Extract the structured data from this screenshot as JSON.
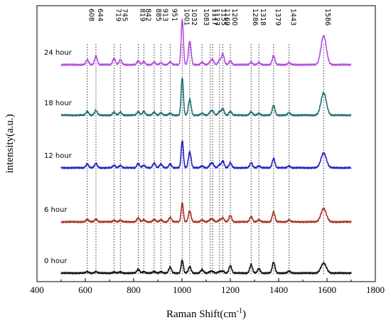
{
  "chart_data": {
    "type": "line",
    "title": "",
    "xlabel": "Raman Shift(cm",
    "xlabel_sup": "-1",
    "xlabel_close": ")",
    "ylabel": "intensity(a.u.)",
    "xlim": [
      400,
      1800
    ],
    "xticks": [
      400,
      600,
      800,
      1000,
      1200,
      1400,
      1600,
      1800
    ],
    "yticks_labeled": false,
    "grid": false,
    "legend": "none",
    "peak_lines": [
      608,
      644,
      719,
      745,
      819,
      842,
      885,
      913,
      951,
      1001,
      1032,
      1083,
      1117,
      1127,
      1155,
      1169,
      1200,
      1286,
      1318,
      1379,
      1443,
      1586
    ],
    "peak_labels": [
      "608",
      "644",
      "719",
      "745",
      "819",
      "842",
      "885",
      "913",
      "951",
      "1001",
      "1032",
      "1083",
      "1117",
      "1127",
      "1155",
      "1169",
      "1200",
      "1286",
      "1318",
      "1379",
      "1443",
      "1586"
    ],
    "series": [
      {
        "name": "24 hour",
        "color": "#b44ce0",
        "peaks": [
          [
            608,
            0.1
          ],
          [
            644,
            0.17
          ],
          [
            719,
            0.13
          ],
          [
            745,
            0.1
          ],
          [
            819,
            0.08
          ],
          [
            842,
            0.06
          ],
          [
            885,
            0.05
          ],
          [
            913,
            0.04
          ],
          [
            951,
            0.06
          ],
          [
            1001,
            0.9
          ],
          [
            1032,
            0.48
          ],
          [
            1083,
            0.05
          ],
          [
            1117,
            0.06
          ],
          [
            1127,
            0.09
          ],
          [
            1155,
            0.09
          ],
          [
            1169,
            0.22
          ],
          [
            1200,
            0.08
          ],
          [
            1286,
            0.05
          ],
          [
            1318,
            0.04
          ],
          [
            1379,
            0.18
          ],
          [
            1443,
            0.04
          ],
          [
            1586,
            0.58
          ]
        ]
      },
      {
        "name": "18 hour",
        "color": "#1f6f72",
        "peaks": [
          [
            608,
            0.08
          ],
          [
            644,
            0.1
          ],
          [
            719,
            0.06
          ],
          [
            745,
            0.06
          ],
          [
            819,
            0.07
          ],
          [
            842,
            0.08
          ],
          [
            885,
            0.06
          ],
          [
            913,
            0.05
          ],
          [
            951,
            0.04
          ],
          [
            1001,
            0.76
          ],
          [
            1032,
            0.32
          ],
          [
            1083,
            0.04
          ],
          [
            1117,
            0.06
          ],
          [
            1127,
            0.08
          ],
          [
            1155,
            0.07
          ],
          [
            1169,
            0.13
          ],
          [
            1200,
            0.08
          ],
          [
            1286,
            0.07
          ],
          [
            1318,
            0.04
          ],
          [
            1379,
            0.2
          ],
          [
            1443,
            0.05
          ],
          [
            1586,
            0.45
          ]
        ]
      },
      {
        "name": "12 hour",
        "color": "#1f1fc8",
        "peaks": [
          [
            608,
            0.08
          ],
          [
            644,
            0.09
          ],
          [
            719,
            0.05
          ],
          [
            745,
            0.05
          ],
          [
            819,
            0.09
          ],
          [
            842,
            0.05
          ],
          [
            885,
            0.1
          ],
          [
            913,
            0.08
          ],
          [
            951,
            0.08
          ],
          [
            1001,
            0.55
          ],
          [
            1032,
            0.32
          ],
          [
            1083,
            0.04
          ],
          [
            1117,
            0.06
          ],
          [
            1127,
            0.08
          ],
          [
            1155,
            0.06
          ],
          [
            1169,
            0.14
          ],
          [
            1200,
            0.1
          ],
          [
            1286,
            0.1
          ],
          [
            1318,
            0.04
          ],
          [
            1379,
            0.19
          ],
          [
            1443,
            0.04
          ],
          [
            1586,
            0.3
          ]
        ]
      },
      {
        "name": "6 hour",
        "color": "#a8321e",
        "peaks": [
          [
            608,
            0.05
          ],
          [
            644,
            0.06
          ],
          [
            719,
            0.03
          ],
          [
            745,
            0.03
          ],
          [
            819,
            0.08
          ],
          [
            842,
            0.04
          ],
          [
            885,
            0.05
          ],
          [
            913,
            0.04
          ],
          [
            951,
            0.09
          ],
          [
            1001,
            0.38
          ],
          [
            1032,
            0.22
          ],
          [
            1083,
            0.04
          ],
          [
            1117,
            0.04
          ],
          [
            1127,
            0.05
          ],
          [
            1155,
            0.04
          ],
          [
            1169,
            0.08
          ],
          [
            1200,
            0.13
          ],
          [
            1286,
            0.11
          ],
          [
            1318,
            0.04
          ],
          [
            1379,
            0.2
          ],
          [
            1443,
            0.04
          ],
          [
            1586,
            0.27
          ]
        ]
      },
      {
        "name": "0 hour",
        "color": "#111111",
        "peaks": [
          [
            608,
            0.03
          ],
          [
            644,
            0.03
          ],
          [
            719,
            0.02
          ],
          [
            745,
            0.02
          ],
          [
            819,
            0.08
          ],
          [
            842,
            0.03
          ],
          [
            885,
            0.03
          ],
          [
            913,
            0.03
          ],
          [
            951,
            0.12
          ],
          [
            1001,
            0.26
          ],
          [
            1032,
            0.13
          ],
          [
            1083,
            0.07
          ],
          [
            1117,
            0.03
          ],
          [
            1127,
            0.03
          ],
          [
            1155,
            0.03
          ],
          [
            1169,
            0.04
          ],
          [
            1200,
            0.15
          ],
          [
            1286,
            0.17
          ],
          [
            1318,
            0.09
          ],
          [
            1379,
            0.22
          ],
          [
            1443,
            0.04
          ],
          [
            1586,
            0.2
          ]
        ]
      }
    ]
  }
}
